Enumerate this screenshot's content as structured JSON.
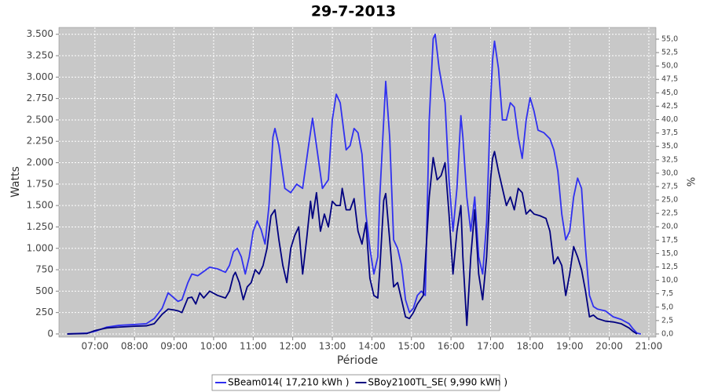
{
  "chart_data": {
    "type": "line",
    "title": "29-7-2013",
    "x_label": "Période",
    "y_label": "Watts",
    "y2_label": "%",
    "grid": true,
    "legend": "bottom",
    "xlim": [
      6.09,
      21.18
    ],
    "xticks": [
      {
        "value": 7,
        "label": "07:00"
      },
      {
        "value": 8,
        "label": "08:00"
      },
      {
        "value": 9,
        "label": "09:00"
      },
      {
        "value": 10,
        "label": "10:00"
      },
      {
        "value": 11,
        "label": "11:00"
      },
      {
        "value": 12,
        "label": "12:00"
      },
      {
        "value": 13,
        "label": "13:00"
      },
      {
        "value": 14,
        "label": "14:00"
      },
      {
        "value": 15,
        "label": "15:00"
      },
      {
        "value": 16,
        "label": "16:00"
      },
      {
        "value": 17,
        "label": "17:00"
      },
      {
        "value": 18,
        "label": "18:00"
      },
      {
        "value": 19,
        "label": "19:00"
      },
      {
        "value": 20,
        "label": "20:00"
      },
      {
        "value": 21,
        "label": "21:00"
      }
    ],
    "ylim": [
      -37,
      3580
    ],
    "yticks": [
      0,
      250,
      500,
      750,
      {
        "value": 1000,
        "label": "1.000"
      },
      {
        "value": 1250,
        "label": "1.250"
      },
      {
        "value": 1500,
        "label": "1.500"
      },
      {
        "value": 1750,
        "label": "1.750"
      },
      {
        "value": 2000,
        "label": "2.000"
      },
      {
        "value": 2250,
        "label": "2.250"
      },
      {
        "value": 2500,
        "label": "2.500"
      },
      {
        "value": 2750,
        "label": "2.750"
      },
      {
        "value": 3000,
        "label": "3.000"
      },
      {
        "value": 3250,
        "label": "3.250"
      },
      {
        "value": 3500,
        "label": "3.500"
      }
    ],
    "y2lim": [
      -0.59,
      57.19
    ],
    "y2ticks": [
      {
        "value": 0,
        "label": "0,0"
      },
      {
        "value": 2.5,
        "label": "2,5"
      },
      {
        "value": 5,
        "label": "5,0"
      },
      {
        "value": 7.5,
        "label": "7,5"
      },
      {
        "value": 10,
        "label": "10,0"
      },
      {
        "value": 12.5,
        "label": "12,5"
      },
      {
        "value": 15,
        "label": "15,0"
      },
      {
        "value": 17.5,
        "label": "17,5"
      },
      {
        "value": 20,
        "label": "20,0"
      },
      {
        "value": 22.5,
        "label": "22,5"
      },
      {
        "value": 25,
        "label": "25,0"
      },
      {
        "value": 27.5,
        "label": "27,5"
      },
      {
        "value": 30,
        "label": "30,0"
      },
      {
        "value": 32.5,
        "label": "32,5"
      },
      {
        "value": 35,
        "label": "35,0"
      },
      {
        "value": 37.5,
        "label": "37,5"
      },
      {
        "value": 40,
        "label": "40,0"
      },
      {
        "value": 42.5,
        "label": "42,5"
      },
      {
        "value": 45,
        "label": "45,0"
      },
      {
        "value": 47.5,
        "label": "47,5"
      },
      {
        "value": 50,
        "label": "50,0"
      },
      {
        "value": 52.5,
        "label": "52,5"
      },
      {
        "value": 55,
        "label": "55,0"
      }
    ],
    "series": [
      {
        "name": "SBeam014( 17,210 kWh )",
        "color": "#3030f0",
        "x": [
          6.3,
          6.8,
          7.0,
          7.3,
          7.6,
          8.0,
          8.3,
          8.5,
          8.7,
          8.85,
          9.0,
          9.1,
          9.2,
          9.35,
          9.45,
          9.6,
          9.75,
          9.9,
          10.1,
          10.3,
          10.4,
          10.5,
          10.6,
          10.7,
          10.8,
          10.9,
          11.0,
          11.1,
          11.2,
          11.3,
          11.4,
          11.5,
          11.55,
          11.65,
          11.8,
          11.95,
          12.1,
          12.25,
          12.4,
          12.5,
          12.6,
          12.75,
          12.9,
          13.0,
          13.1,
          13.2,
          13.35,
          13.45,
          13.55,
          13.65,
          13.75,
          13.85,
          13.95,
          14.05,
          14.15,
          14.2,
          14.3,
          14.35,
          14.45,
          14.55,
          14.65,
          14.75,
          14.85,
          14.95,
          15.05,
          15.15,
          15.25,
          15.35,
          15.45,
          15.55,
          15.6,
          15.7,
          15.85,
          15.95,
          16.05,
          16.15,
          16.25,
          16.3,
          16.4,
          16.5,
          16.6,
          16.7,
          16.8,
          16.9,
          17.0,
          17.05,
          17.1,
          17.2,
          17.3,
          17.4,
          17.5,
          17.6,
          17.7,
          17.8,
          17.9,
          18.0,
          18.1,
          18.2,
          18.35,
          18.5,
          18.6,
          18.7,
          18.8,
          18.9,
          19.0,
          19.1,
          19.2,
          19.3,
          19.4,
          19.5,
          19.6,
          19.7,
          19.9,
          20.1,
          20.3,
          20.5,
          20.6,
          20.7,
          20.8
        ],
        "values": [
          0,
          10,
          30,
          80,
          100,
          110,
          120,
          180,
          300,
          480,
          420,
          380,
          400,
          600,
          700,
          680,
          730,
          780,
          760,
          720,
          800,
          960,
          1000,
          900,
          700,
          900,
          1200,
          1320,
          1220,
          1050,
          1500,
          2300,
          2400,
          2200,
          1700,
          1650,
          1750,
          1700,
          2200,
          2520,
          2200,
          1700,
          1800,
          2500,
          2800,
          2700,
          2150,
          2200,
          2400,
          2350,
          2100,
          1400,
          1000,
          700,
          900,
          1600,
          2500,
          2950,
          2300,
          1100,
          1000,
          800,
          400,
          250,
          300,
          450,
          500,
          450,
          2500,
          3450,
          3500,
          3100,
          2700,
          1800,
          1200,
          1700,
          2550,
          2300,
          1600,
          1200,
          1600,
          900,
          700,
          1300,
          2700,
          3200,
          3420,
          3100,
          2500,
          2500,
          2700,
          2650,
          2300,
          2050,
          2500,
          2760,
          2600,
          2380,
          2350,
          2280,
          2150,
          1900,
          1400,
          1100,
          1200,
          1600,
          1820,
          1700,
          1000,
          450,
          320,
          290,
          270,
          200,
          170,
          120,
          60,
          10,
          0
        ]
      },
      {
        "name": "SBoy2100TL_SE( 9,990 kWh )",
        "color": "#000080",
        "x": [
          6.3,
          6.8,
          7.0,
          7.3,
          7.6,
          8.0,
          8.3,
          8.5,
          8.7,
          8.85,
          9.0,
          9.1,
          9.2,
          9.35,
          9.45,
          9.55,
          9.65,
          9.75,
          9.9,
          10.1,
          10.3,
          10.4,
          10.5,
          10.55,
          10.65,
          10.75,
          10.85,
          10.95,
          11.05,
          11.15,
          11.25,
          11.35,
          11.45,
          11.55,
          11.65,
          11.75,
          11.85,
          11.95,
          12.05,
          12.15,
          12.25,
          12.35,
          12.45,
          12.5,
          12.6,
          12.7,
          12.8,
          12.9,
          13.0,
          13.1,
          13.2,
          13.25,
          13.35,
          13.45,
          13.55,
          13.65,
          13.75,
          13.85,
          13.95,
          14.05,
          14.15,
          14.2,
          14.3,
          14.35,
          14.45,
          14.55,
          14.65,
          14.75,
          14.85,
          14.95,
          15.05,
          15.15,
          15.3,
          15.45,
          15.55,
          15.65,
          15.75,
          15.85,
          15.95,
          16.05,
          16.15,
          16.25,
          16.3,
          16.4,
          16.5,
          16.6,
          16.7,
          16.8,
          16.9,
          17.0,
          17.05,
          17.1,
          17.2,
          17.3,
          17.4,
          17.5,
          17.6,
          17.7,
          17.8,
          17.9,
          18.0,
          18.1,
          18.25,
          18.4,
          18.5,
          18.6,
          18.7,
          18.8,
          18.9,
          19.0,
          19.1,
          19.2,
          19.3,
          19.4,
          19.5,
          19.6,
          19.7,
          19.9,
          20.1,
          20.3,
          20.5,
          20.6,
          20.7
        ],
        "values": [
          0,
          5,
          40,
          70,
          80,
          90,
          95,
          120,
          230,
          290,
          280,
          270,
          250,
          420,
          430,
          350,
          480,
          420,
          500,
          450,
          420,
          500,
          680,
          720,
          600,
          400,
          550,
          600,
          750,
          700,
          800,
          1000,
          1380,
          1450,
          1100,
          800,
          600,
          1000,
          1150,
          1250,
          700,
          1100,
          1550,
          1350,
          1650,
          1200,
          1400,
          1250,
          1550,
          1500,
          1500,
          1700,
          1450,
          1450,
          1580,
          1200,
          1050,
          1300,
          650,
          450,
          420,
          750,
          1560,
          1640,
          1100,
          550,
          600,
          400,
          200,
          180,
          250,
          350,
          450,
          1600,
          2060,
          1800,
          1850,
          2000,
          1400,
          700,
          1200,
          1500,
          900,
          100,
          900,
          1450,
          700,
          400,
          900,
          1800,
          2050,
          2130,
          1900,
          1700,
          1500,
          1600,
          1450,
          1700,
          1650,
          1400,
          1450,
          1400,
          1380,
          1350,
          1200,
          820,
          900,
          800,
          450,
          700,
          1020,
          900,
          750,
          500,
          200,
          220,
          180,
          150,
          140,
          120,
          70,
          30,
          0
        ]
      }
    ]
  }
}
